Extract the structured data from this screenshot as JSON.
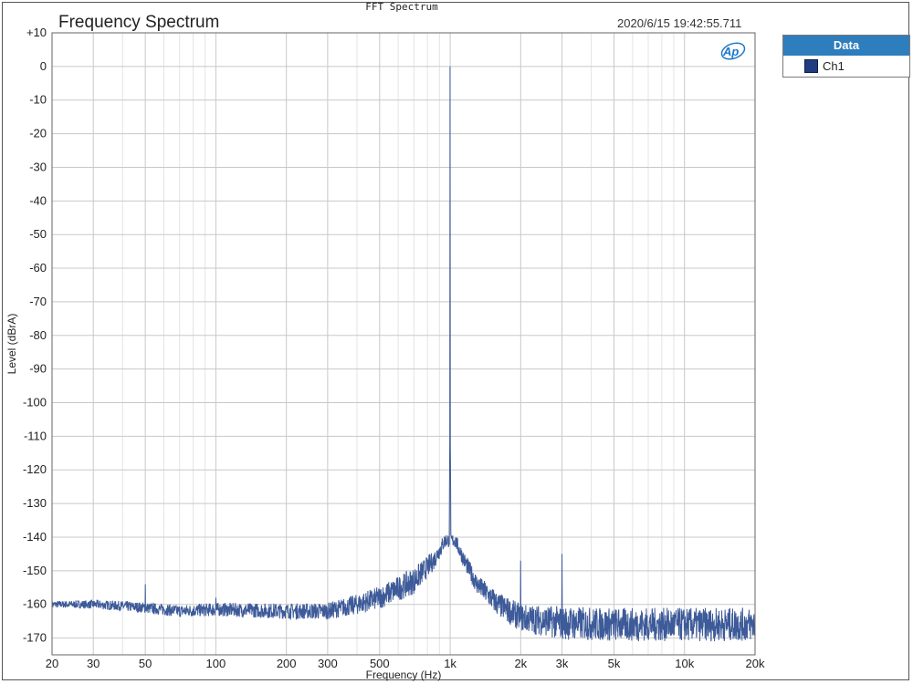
{
  "window_title": "FFT Spectrum",
  "timestamp": "2020/6/15 19:42:55.711",
  "logo_text": "Ap",
  "legend": {
    "header": "Data",
    "entries": [
      {
        "name": "Ch1",
        "color": "#1f3d80"
      }
    ]
  },
  "chart_data": {
    "type": "line",
    "title": "Frequency Spectrum",
    "xlabel": "Frequency (Hz)",
    "ylabel": "Level (dBrA)",
    "xscale": "log",
    "xlim": [
      20,
      20000
    ],
    "ylim": [
      -175,
      10
    ],
    "grid": true,
    "legend_position": "right-outside",
    "xticks": [
      {
        "value": 20,
        "label": "20"
      },
      {
        "value": 30,
        "label": "30"
      },
      {
        "value": 50,
        "label": "50"
      },
      {
        "value": 100,
        "label": "100"
      },
      {
        "value": 200,
        "label": "200"
      },
      {
        "value": 300,
        "label": "300"
      },
      {
        "value": 500,
        "label": "500"
      },
      {
        "value": 1000,
        "label": "1k"
      },
      {
        "value": 2000,
        "label": "2k"
      },
      {
        "value": 3000,
        "label": "3k"
      },
      {
        "value": 5000,
        "label": "5k"
      },
      {
        "value": 10000,
        "label": "10k"
      },
      {
        "value": 20000,
        "label": "20k"
      }
    ],
    "yticks": [
      {
        "value": 10,
        "label": "+10"
      },
      {
        "value": 0,
        "label": "0"
      },
      {
        "value": -10,
        "label": "-10"
      },
      {
        "value": -20,
        "label": "-20"
      },
      {
        "value": -30,
        "label": "-30"
      },
      {
        "value": -40,
        "label": "-40"
      },
      {
        "value": -50,
        "label": "-50"
      },
      {
        "value": -60,
        "label": "-60"
      },
      {
        "value": -70,
        "label": "-70"
      },
      {
        "value": -80,
        "label": "-80"
      },
      {
        "value": -90,
        "label": "-90"
      },
      {
        "value": -100,
        "label": "-100"
      },
      {
        "value": -110,
        "label": "-110"
      },
      {
        "value": -120,
        "label": "-120"
      },
      {
        "value": -130,
        "label": "-130"
      },
      {
        "value": -140,
        "label": "-140"
      },
      {
        "value": -150,
        "label": "-150"
      },
      {
        "value": -160,
        "label": "-160"
      },
      {
        "value": -170,
        "label": "-170"
      }
    ],
    "series": [
      {
        "name": "Ch1",
        "color": "#3d5a99",
        "noise_floor": [
          [
            20,
            -160
          ],
          [
            30,
            -160
          ],
          [
            40,
            -160.5
          ],
          [
            50,
            -161
          ],
          [
            70,
            -162
          ],
          [
            100,
            -161.5
          ],
          [
            200,
            -162
          ],
          [
            300,
            -162
          ],
          [
            400,
            -160
          ],
          [
            500,
            -158
          ],
          [
            700,
            -153
          ],
          [
            850,
            -147
          ],
          [
            950,
            -141
          ],
          [
            1050,
            -141
          ],
          [
            1150,
            -147
          ],
          [
            1300,
            -154
          ],
          [
            1600,
            -160
          ],
          [
            2000,
            -164
          ],
          [
            3000,
            -165.5
          ],
          [
            5000,
            -166
          ],
          [
            10000,
            -166
          ],
          [
            20000,
            -166
          ]
        ],
        "noise_amplitude": [
          [
            20,
            1
          ],
          [
            40,
            1.5
          ],
          [
            100,
            2
          ],
          [
            300,
            2.5
          ],
          [
            700,
            4
          ],
          [
            1000,
            2
          ],
          [
            1500,
            3.5
          ],
          [
            3000,
            5
          ],
          [
            20000,
            5
          ]
        ],
        "peaks": [
          {
            "x": 1000,
            "y": 0
          },
          {
            "x": 50,
            "y": -154
          },
          {
            "x": 100,
            "y": -158
          },
          {
            "x": 2000,
            "y": -147
          },
          {
            "x": 3000,
            "y": -145
          }
        ]
      }
    ]
  }
}
